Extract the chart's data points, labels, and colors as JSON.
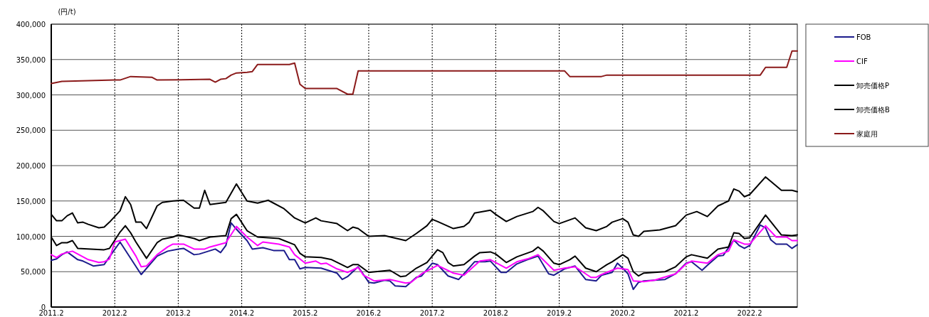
{
  "chart_data": {
    "type": "line",
    "ylabel": "(円/t)",
    "legend": "right",
    "grid": true,
    "xlim": [
      "2011-02",
      "2022-11"
    ],
    "xticks": [
      {
        "value": "2011-02",
        "label": "2011.2"
      },
      {
        "value": "2012-02",
        "label": "2012.2"
      },
      {
        "value": "2013-02",
        "label": "2013.2"
      },
      {
        "value": "2014-02",
        "label": "2014.2"
      },
      {
        "value": "2015-02",
        "label": "2015.2"
      },
      {
        "value": "2016-02",
        "label": "2016.2"
      },
      {
        "value": "2017-02",
        "label": "2017.2"
      },
      {
        "value": "2018-02",
        "label": "2018.2"
      },
      {
        "value": "2019-02",
        "label": "2019.2"
      },
      {
        "value": "2020-02",
        "label": "2020.2"
      },
      {
        "value": "2021-02",
        "label": "2021.2"
      },
      {
        "value": "2022-02",
        "label": "2022.2"
      }
    ],
    "ylim": [
      0,
      400000
    ],
    "yticks": [
      0,
      {
        "value": 50000,
        "label": "50,000"
      },
      {
        "value": 100000,
        "label": "100,000"
      },
      {
        "value": 150000,
        "label": "150,000"
      },
      {
        "value": 200000,
        "label": "200,000"
      },
      {
        "value": 250000,
        "label": "250,000"
      },
      {
        "value": 300000,
        "label": "300,000"
      },
      {
        "value": 350000,
        "label": "350,000"
      },
      {
        "value": 400000,
        "label": "400,000"
      }
    ],
    "series": [
      {
        "name": "FOB",
        "color": "#1c1c8c",
        "x": [
          "2011-02",
          "2011-03",
          "2011-04",
          "2011-05",
          "2011-07",
          "2011-08",
          "2011-10",
          "2011-12",
          "2012-01",
          "2012-03",
          "2012-07",
          "2012-10",
          "2012-12",
          "2013-02",
          "2013-03",
          "2013-05",
          "2013-06",
          "2013-09",
          "2013-10",
          "2013-11",
          "2013-12",
          "2014-01",
          "2014-03",
          "2014-04",
          "2014-06",
          "2014-08",
          "2014-10",
          "2014-11",
          "2014-12",
          "2015-01",
          "2015-02",
          "2015-05",
          "2015-08",
          "2015-09",
          "2015-10",
          "2015-12",
          "2016-02",
          "2016-03",
          "2016-05",
          "2016-06",
          "2016-07",
          "2016-09",
          "2016-11",
          "2016-12",
          "2017-02",
          "2017-03",
          "2017-05",
          "2017-07",
          "2017-08",
          "2017-10",
          "2017-12",
          "2018-01",
          "2018-03",
          "2018-04",
          "2018-06",
          "2018-08",
          "2018-10",
          "2018-12",
          "2019-01",
          "2019-03",
          "2019-05",
          "2019-07",
          "2019-09",
          "2019-10",
          "2019-12",
          "2020-01",
          "2020-02",
          "2020-03",
          "2020-04",
          "2020-05",
          "2020-06",
          "2020-10",
          "2020-12",
          "2021-02",
          "2021-03",
          "2021-05",
          "2021-06",
          "2021-08",
          "2021-09",
          "2021-11",
          "2021-12",
          "2022-01",
          "2022-02",
          "2022-04",
          "2022-05",
          "2022-06",
          "2022-07",
          "2022-09",
          "2022-10",
          "2022-11"
        ],
        "values": [
          66000,
          68000,
          74000,
          78000,
          67000,
          65000,
          58000,
          60000,
          71000,
          92000,
          46000,
          72000,
          79000,
          82000,
          83000,
          74000,
          75000,
          82000,
          77000,
          87000,
          119000,
          110000,
          94000,
          82000,
          84000,
          80000,
          80000,
          67000,
          67000,
          54000,
          56000,
          55000,
          48000,
          39000,
          43000,
          57000,
          35000,
          34000,
          38000,
          37000,
          30000,
          29000,
          42000,
          44000,
          62000,
          60000,
          44000,
          39000,
          47000,
          64000,
          64000,
          65000,
          49000,
          49000,
          61000,
          67000,
          72000,
          47000,
          45000,
          54000,
          58000,
          39000,
          37000,
          45000,
          49000,
          62000,
          55000,
          47000,
          25000,
          35000,
          37000,
          39000,
          47000,
          62000,
          64000,
          52000,
          59000,
          72000,
          73000,
          95000,
          87000,
          83000,
          87000,
          116000,
          112000,
          95000,
          89000,
          89000,
          83000,
          88000
        ]
      },
      {
        "name": "CIF",
        "color": "#ff00ff",
        "x": [
          "2011-02",
          "2011-03",
          "2011-04",
          "2011-06",
          "2011-07",
          "2011-09",
          "2011-11",
          "2011-12",
          "2012-01",
          "2012-02",
          "2012-04",
          "2012-06",
          "2012-07",
          "2012-08",
          "2012-10",
          "2012-12",
          "2013-01",
          "2013-03",
          "2013-05",
          "2013-07",
          "2013-08",
          "2013-11",
          "2014-01",
          "2014-03",
          "2014-05",
          "2014-06",
          "2014-09",
          "2014-11",
          "2014-12",
          "2015-02",
          "2015-04",
          "2015-05",
          "2015-06",
          "2015-08",
          "2015-10",
          "2015-12",
          "2016-01",
          "2016-03",
          "2016-06",
          "2016-09",
          "2016-10",
          "2016-12",
          "2017-03",
          "2017-06",
          "2017-08",
          "2017-11",
          "2018-01",
          "2018-04",
          "2018-06",
          "2018-08",
          "2018-10",
          "2019-01",
          "2019-03",
          "2019-05",
          "2019-08",
          "2019-09",
          "2019-10",
          "2020-01",
          "2020-03",
          "2020-04",
          "2020-06",
          "2020-08",
          "2020-12",
          "2021-02",
          "2021-03",
          "2021-06",
          "2021-08",
          "2021-10",
          "2021-11",
          "2022-01",
          "2022-02",
          "2022-05",
          "2022-07",
          "2022-09",
          "2022-10",
          "2022-11"
        ],
        "values": [
          74000,
          70000,
          75000,
          79000,
          75000,
          67000,
          63000,
          64000,
          68000,
          92000,
          96000,
          72000,
          57000,
          58000,
          74000,
          85000,
          89000,
          89000,
          82000,
          82000,
          85000,
          91000,
          114000,
          99000,
          87000,
          92000,
          89000,
          85000,
          74000,
          62000,
          65000,
          61000,
          62000,
          54000,
          49000,
          56000,
          45000,
          37000,
          39000,
          34000,
          35000,
          47000,
          59000,
          48000,
          45000,
          65000,
          67000,
          55000,
          64000,
          68000,
          74000,
          52000,
          55000,
          57000,
          42000,
          42000,
          46000,
          55000,
          53000,
          37000,
          36000,
          38000,
          47000,
          61000,
          65000,
          62000,
          74000,
          79000,
          95000,
          89000,
          89000,
          115000,
          99000,
          99000,
          94000,
          94000
        ]
      },
      {
        "name": "卸売価格P",
        "color": "#000000",
        "x": [
          "2011-02",
          "2011-03",
          "2011-04",
          "2011-05",
          "2011-06",
          "2011-07",
          "2011-12",
          "2012-01",
          "2012-03",
          "2012-04",
          "2012-05",
          "2012-06",
          "2012-08",
          "2012-10",
          "2012-11",
          "2013-01",
          "2013-02",
          "2013-05",
          "2013-06",
          "2013-08",
          "2013-11",
          "2013-12",
          "2014-01",
          "2014-03",
          "2014-05",
          "2014-07",
          "2014-09",
          "2014-12",
          "2015-01",
          "2015-02",
          "2015-05",
          "2015-07",
          "2015-10",
          "2015-11",
          "2015-12",
          "2016-02",
          "2016-06",
          "2016-08",
          "2016-09",
          "2016-11",
          "2017-01",
          "2017-02",
          "2017-03",
          "2017-04",
          "2017-05",
          "2017-06",
          "2017-08",
          "2017-10",
          "2017-11",
          "2018-01",
          "2018-02",
          "2018-04",
          "2018-06",
          "2018-09",
          "2018-10",
          "2018-11",
          "2019-01",
          "2019-02",
          "2019-04",
          "2019-05",
          "2019-07",
          "2019-09",
          "2019-11",
          "2019-12",
          "2020-02",
          "2020-03",
          "2020-04",
          "2020-05",
          "2020-06",
          "2020-10",
          "2020-12",
          "2021-02",
          "2021-03",
          "2021-06",
          "2021-08",
          "2021-10",
          "2021-11",
          "2021-12",
          "2022-01",
          "2022-02",
          "2022-05",
          "2022-08",
          "2022-10",
          "2022-11"
        ],
        "values": [
          99000,
          87000,
          91000,
          91000,
          94000,
          83000,
          81000,
          83000,
          106000,
          115000,
          105000,
          92000,
          69000,
          91000,
          96000,
          99000,
          102000,
          97000,
          94000,
          99000,
          101000,
          125000,
          131000,
          108000,
          99000,
          98000,
          97000,
          88000,
          76000,
          71000,
          70000,
          67000,
          56000,
          60000,
          60000,
          49000,
          52000,
          43000,
          44000,
          55000,
          63000,
          72000,
          81000,
          77000,
          63000,
          58000,
          60000,
          72000,
          77000,
          78000,
          75000,
          63000,
          71000,
          79000,
          85000,
          79000,
          62000,
          60000,
          67000,
          72000,
          55000,
          50000,
          60000,
          64000,
          74000,
          69000,
          50000,
          44000,
          48000,
          50000,
          57000,
          71000,
          74000,
          69000,
          82000,
          85000,
          105000,
          104000,
          97000,
          98000,
          130000,
          102000,
          101000,
          102000
        ]
      },
      {
        "name": "卸売価格B",
        "color": "#000000",
        "x": [
          "2011-02",
          "2011-03",
          "2011-04",
          "2011-05",
          "2011-06",
          "2011-07",
          "2011-08",
          "2011-09",
          "2011-11",
          "2011-12",
          "2012-01",
          "2012-03",
          "2012-04",
          "2012-05",
          "2012-06",
          "2012-07",
          "2012-08",
          "2012-10",
          "2012-11",
          "2013-01",
          "2013-03",
          "2013-05",
          "2013-06",
          "2013-07",
          "2013-08",
          "2013-11",
          "2014-01",
          "2014-03",
          "2014-05",
          "2014-07",
          "2014-10",
          "2014-12",
          "2015-02",
          "2015-04",
          "2015-05",
          "2015-08",
          "2015-10",
          "2015-11",
          "2015-12",
          "2016-02",
          "2016-05",
          "2016-09",
          "2016-11",
          "2017-01",
          "2017-02",
          "2017-03",
          "2017-06",
          "2017-08",
          "2017-09",
          "2017-10",
          "2018-01",
          "2018-02",
          "2018-04",
          "2018-06",
          "2018-09",
          "2018-10",
          "2018-11",
          "2019-01",
          "2019-02",
          "2019-05",
          "2019-07",
          "2019-09",
          "2019-11",
          "2019-12",
          "2020-02",
          "2020-03",
          "2020-04",
          "2020-05",
          "2020-06",
          "2020-09",
          "2020-12",
          "2021-02",
          "2021-04",
          "2021-06",
          "2021-08",
          "2021-10",
          "2021-11",
          "2021-12",
          "2022-01",
          "2022-02",
          "2022-05",
          "2022-08",
          "2022-10",
          "2022-11"
        ],
        "values": [
          131000,
          122000,
          122000,
          129000,
          133000,
          119000,
          120000,
          117000,
          112000,
          113000,
          120000,
          136000,
          156000,
          145000,
          120000,
          120000,
          111000,
          143000,
          148000,
          150000,
          151000,
          140000,
          140000,
          165000,
          145000,
          148000,
          174000,
          150000,
          147000,
          151000,
          139000,
          126000,
          119000,
          126000,
          122000,
          118000,
          108000,
          113000,
          111000,
          100000,
          101000,
          94000,
          104000,
          115000,
          124000,
          121000,
          111000,
          114000,
          120000,
          133000,
          137000,
          131000,
          121000,
          128000,
          135000,
          141000,
          136000,
          121000,
          118000,
          126000,
          112000,
          108000,
          114000,
          120000,
          125000,
          120000,
          102000,
          100000,
          107000,
          109000,
          115000,
          130000,
          135000,
          128000,
          143000,
          150000,
          167000,
          164000,
          156000,
          159000,
          184000,
          165000,
          165000,
          163000
        ]
      },
      {
        "name": "家庭用",
        "color": "#8b1a1a",
        "x": [
          "2011-02",
          "2011-04",
          "2012-02",
          "2012-03",
          "2012-05",
          "2012-09",
          "2012-10",
          "2013-08",
          "2013-09",
          "2013-10",
          "2013-11",
          "2013-12",
          "2014-01",
          "2014-03",
          "2014-04",
          "2014-05",
          "2014-11",
          "2014-12",
          "2015-01",
          "2015-02",
          "2015-08",
          "2015-10",
          "2015-11",
          "2015-12",
          "2019-03",
          "2019-04",
          "2019-10",
          "2019-11",
          "2022-04",
          "2022-05",
          "2022-09",
          "2022-10",
          "2022-11"
        ],
        "values": [
          316000,
          319000,
          321000,
          321000,
          326000,
          325000,
          321000,
          322000,
          318000,
          322000,
          323000,
          328000,
          331000,
          332000,
          333000,
          343000,
          343000,
          345000,
          315000,
          309000,
          309000,
          301000,
          301000,
          334000,
          334000,
          326000,
          326000,
          328000,
          328000,
          339000,
          339000,
          362000,
          362000
        ]
      }
    ]
  }
}
